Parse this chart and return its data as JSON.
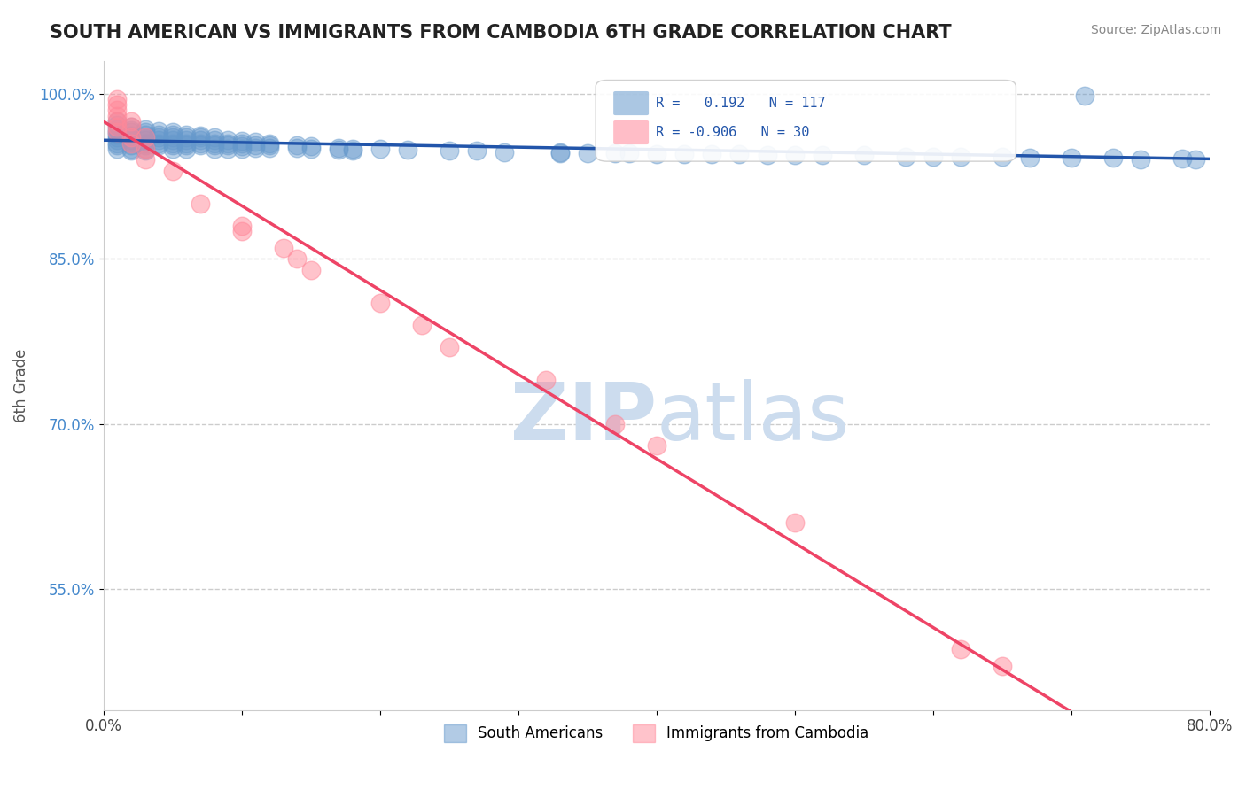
{
  "title": "SOUTH AMERICAN VS IMMIGRANTS FROM CAMBODIA 6TH GRADE CORRELATION CHART",
  "source": "Source: ZipAtlas.com",
  "ylabel": "6th Grade",
  "xlim": [
    0.0,
    0.8
  ],
  "ylim": [
    0.44,
    1.03
  ],
  "ytick_positions": [
    0.55,
    0.7,
    0.85,
    1.0
  ],
  "ytick_labels": [
    "55.0%",
    "70.0%",
    "85.0%",
    "100.0%"
  ],
  "grid_color": "#cccccc",
  "background_color": "#ffffff",
  "title_color": "#222222",
  "title_fontsize": 15,
  "watermark_color": "#ccdcee",
  "watermark_fontsize": 65,
  "blue_color": "#6699cc",
  "pink_color": "#ff8899",
  "blue_line_color": "#2255aa",
  "pink_line_color": "#ee4466",
  "legend_R_blue": "0.192",
  "legend_N_blue": "117",
  "legend_R_pink": "-0.906",
  "legend_N_pink": "30",
  "legend_label_blue": "South Americans",
  "legend_label_pink": "Immigrants from Cambodia",
  "blue_scatter_x": [
    0.01,
    0.01,
    0.01,
    0.01,
    0.01,
    0.01,
    0.01,
    0.01,
    0.01,
    0.01,
    0.02,
    0.02,
    0.02,
    0.02,
    0.02,
    0.02,
    0.02,
    0.02,
    0.02,
    0.02,
    0.03,
    0.03,
    0.03,
    0.03,
    0.03,
    0.03,
    0.03,
    0.03,
    0.03,
    0.04,
    0.04,
    0.04,
    0.04,
    0.04,
    0.04,
    0.05,
    0.05,
    0.05,
    0.05,
    0.05,
    0.05,
    0.05,
    0.06,
    0.06,
    0.06,
    0.06,
    0.06,
    0.06,
    0.07,
    0.07,
    0.07,
    0.07,
    0.07,
    0.08,
    0.08,
    0.08,
    0.08,
    0.08,
    0.09,
    0.09,
    0.09,
    0.09,
    0.1,
    0.1,
    0.1,
    0.1,
    0.11,
    0.11,
    0.11,
    0.12,
    0.12,
    0.12,
    0.14,
    0.14,
    0.15,
    0.15,
    0.17,
    0.17,
    0.18,
    0.18,
    0.2,
    0.22,
    0.25,
    0.27,
    0.29,
    0.33,
    0.33,
    0.35,
    0.37,
    0.38,
    0.4,
    0.42,
    0.44,
    0.46,
    0.48,
    0.5,
    0.52,
    0.55,
    0.58,
    0.6,
    0.62,
    0.65,
    0.67,
    0.7,
    0.71,
    0.73,
    0.75,
    0.78,
    0.79
  ],
  "blue_scatter_y": [
    0.975,
    0.972,
    0.968,
    0.965,
    0.963,
    0.96,
    0.958,
    0.955,
    0.953,
    0.95,
    0.97,
    0.967,
    0.965,
    0.962,
    0.96,
    0.958,
    0.955,
    0.953,
    0.95,
    0.948,
    0.968,
    0.965,
    0.963,
    0.96,
    0.958,
    0.955,
    0.953,
    0.95,
    0.948,
    0.966,
    0.963,
    0.96,
    0.958,
    0.955,
    0.953,
    0.965,
    0.963,
    0.96,
    0.958,
    0.955,
    0.953,
    0.95,
    0.963,
    0.96,
    0.958,
    0.955,
    0.953,
    0.95,
    0.962,
    0.96,
    0.958,
    0.955,
    0.953,
    0.96,
    0.958,
    0.955,
    0.953,
    0.95,
    0.958,
    0.955,
    0.953,
    0.95,
    0.957,
    0.955,
    0.952,
    0.95,
    0.956,
    0.953,
    0.951,
    0.955,
    0.953,
    0.951,
    0.953,
    0.951,
    0.952,
    0.95,
    0.951,
    0.949,
    0.95,
    0.948,
    0.95,
    0.949,
    0.948,
    0.948,
    0.947,
    0.947,
    0.946,
    0.946,
    0.946,
    0.946,
    0.945,
    0.945,
    0.945,
    0.945,
    0.944,
    0.944,
    0.944,
    0.944,
    0.943,
    0.943,
    0.943,
    0.943,
    0.942,
    0.942,
    0.998,
    0.942,
    0.94,
    0.941,
    0.94
  ],
  "pink_scatter_x": [
    0.01,
    0.01,
    0.01,
    0.01,
    0.01,
    0.01,
    0.01,
    0.02,
    0.02,
    0.02,
    0.02,
    0.03,
    0.03,
    0.03,
    0.05,
    0.07,
    0.1,
    0.1,
    0.13,
    0.14,
    0.15,
    0.2,
    0.23,
    0.25,
    0.32,
    0.37,
    0.4,
    0.5,
    0.62,
    0.65
  ],
  "pink_scatter_y": [
    0.995,
    0.99,
    0.985,
    0.98,
    0.975,
    0.97,
    0.965,
    0.975,
    0.97,
    0.96,
    0.955,
    0.96,
    0.95,
    0.94,
    0.93,
    0.9,
    0.88,
    0.875,
    0.86,
    0.85,
    0.84,
    0.81,
    0.79,
    0.77,
    0.74,
    0.7,
    0.68,
    0.61,
    0.495,
    0.48
  ]
}
